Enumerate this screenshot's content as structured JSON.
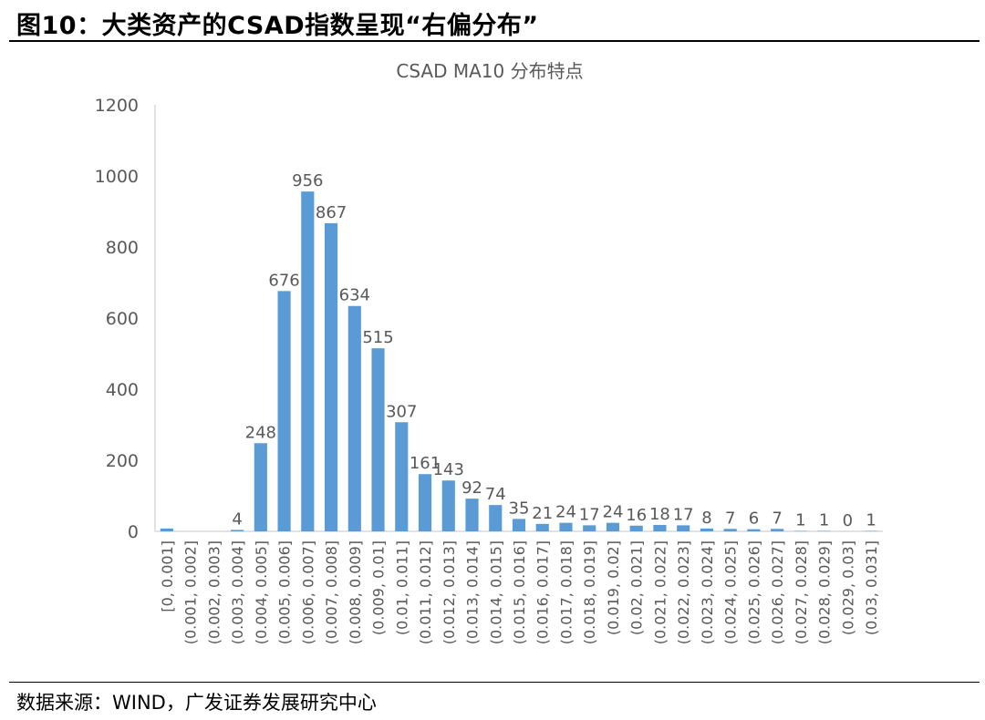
{
  "figure": {
    "title": "图10：大类资产的CSAD指数呈现“右偏分布”",
    "source": "数据来源：WIND，广发证券发展研究中心"
  },
  "colors": {
    "bar": "#5B9BD5",
    "text": "#595959",
    "axis": "#D9D9D9"
  },
  "chart_data": {
    "type": "bar",
    "title": "CSAD MA10 分布特点",
    "xlabel": "",
    "ylabel": "",
    "ylim": [
      0,
      1200
    ],
    "yticks": [
      "0",
      "200",
      "400",
      "600",
      "800",
      "1000",
      "1200"
    ],
    "categories": [
      "[0, 0.001]",
      "(0.001, 0.002]",
      "(0.002, 0.003]",
      "(0.003, 0.004]",
      "(0.004, 0.005]",
      "(0.005, 0.006]",
      "(0.006, 0.007]",
      "(0.007, 0.008]",
      "(0.008, 0.009]",
      "(0.009, 0.01]",
      "(0.01, 0.011]",
      "(0.011, 0.012]",
      "(0.012, 0.013]",
      "(0.013, 0.014]",
      "(0.014, 0.015]",
      "(0.015, 0.016]",
      "(0.016, 0.017]",
      "(0.017, 0.018]",
      "(0.018, 0.019]",
      "(0.019, 0.02]",
      "(0.02, 0.021]",
      "(0.021, 0.022]",
      "(0.022, 0.023]",
      "(0.023, 0.024]",
      "(0.024, 0.025]",
      "(0.025, 0.026]",
      "(0.026, 0.027]",
      "(0.027, 0.028]",
      "(0.028, 0.029]",
      "(0.029, 0.03]",
      "(0.03, 0.031]"
    ],
    "values": [
      8,
      0,
      0,
      4,
      248,
      676,
      956,
      867,
      634,
      515,
      307,
      161,
      143,
      92,
      74,
      35,
      21,
      24,
      17,
      24,
      16,
      18,
      17,
      8,
      7,
      6,
      7,
      1,
      1,
      0,
      1
    ],
    "labels": [
      "",
      "",
      "",
      "4",
      "248",
      "676",
      "956",
      "867",
      "634",
      "515",
      "307",
      "161",
      "143",
      "92",
      "74",
      "35",
      "21",
      "24",
      "17",
      "24",
      "16",
      "18",
      "17",
      "8",
      "7",
      "6",
      "7",
      "1",
      "1",
      "0",
      "1"
    ]
  }
}
